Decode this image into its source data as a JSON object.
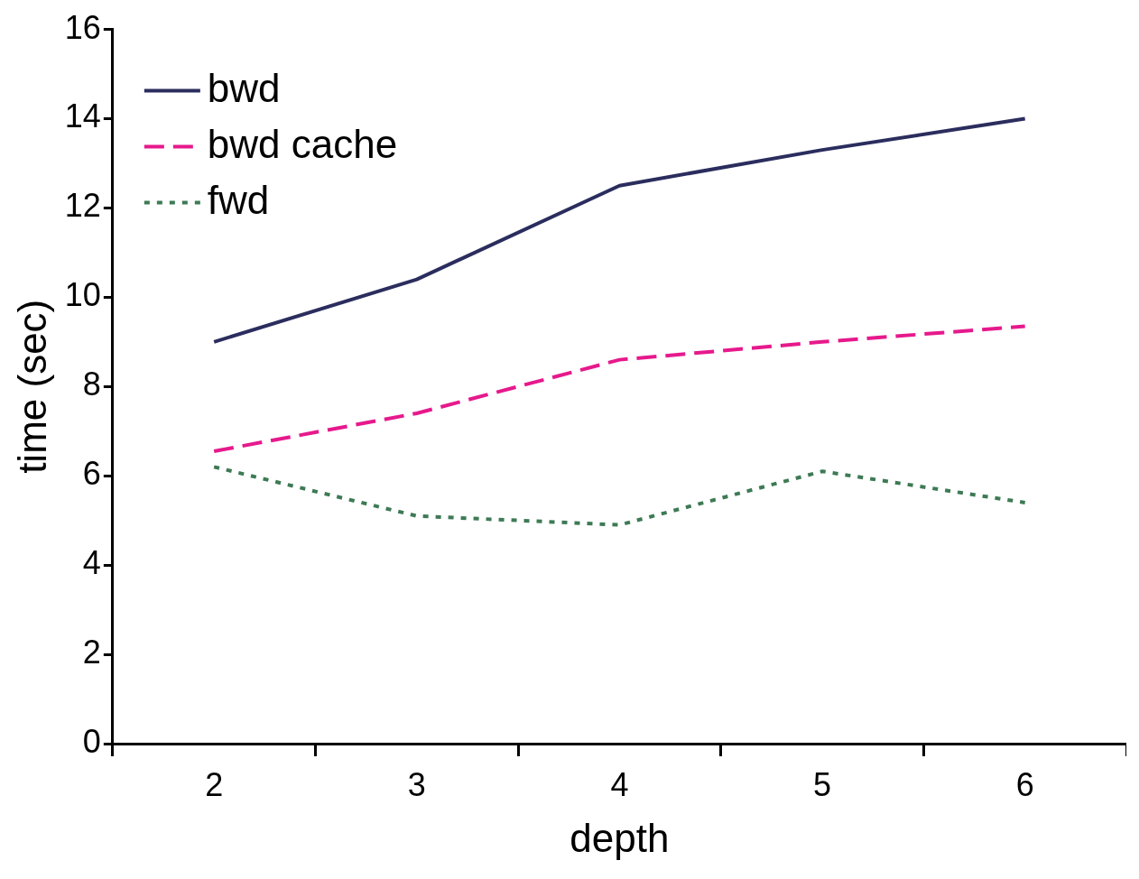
{
  "chart_data": {
    "type": "line",
    "xlabel": "depth",
    "ylabel": "time (sec)",
    "categories": [
      "2",
      "3",
      "4",
      "5",
      "6"
    ],
    "series": [
      {
        "name": "bwd",
        "color": "#2b2d5e",
        "line_style": "solid",
        "values": [
          9.0,
          10.4,
          12.5,
          13.3,
          14.0
        ]
      },
      {
        "name": "bwd cache",
        "color": "#e6198c",
        "line_style": "dashed",
        "values": [
          6.55,
          7.4,
          8.6,
          9.0,
          9.35
        ]
      },
      {
        "name": "fwd",
        "color": "#3d7a55",
        "line_style": "dotted",
        "values": [
          6.2,
          5.1,
          4.9,
          6.1,
          5.4
        ]
      }
    ],
    "ylim": [
      0,
      16
    ],
    "yticks": [
      0,
      2,
      4,
      6,
      8,
      10,
      12,
      14,
      16
    ],
    "grid": false,
    "legend": "top left",
    "marker": "none"
  }
}
